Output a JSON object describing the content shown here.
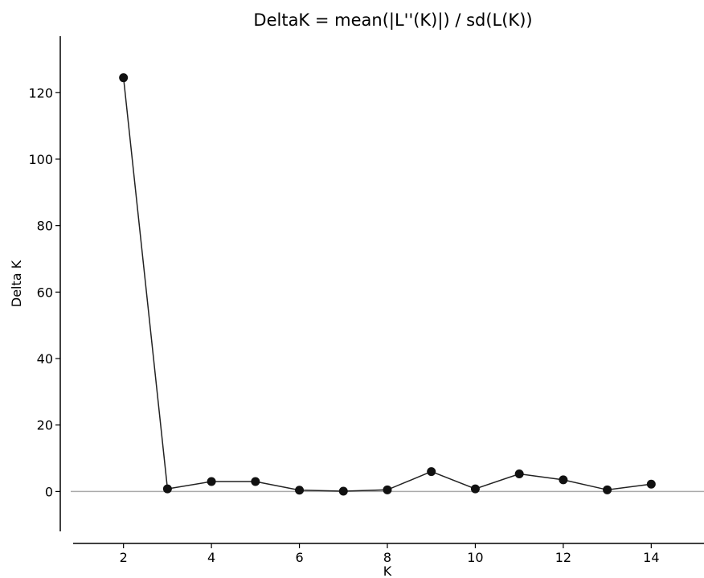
{
  "chart_data": {
    "type": "line",
    "title": "DeltaK = mean(|L''(K)|) / sd(L(K))",
    "xlabel": "K",
    "ylabel": "Delta K",
    "xlim": [
      0.8,
      15.2
    ],
    "ylim": [
      -12,
      137
    ],
    "xticks": [
      2,
      4,
      6,
      8,
      10,
      12,
      14
    ],
    "yticks": [
      0,
      20,
      40,
      60,
      80,
      100,
      120
    ],
    "grid": false,
    "reference_line_y": 0,
    "series": [
      {
        "x": [
          2,
          3,
          4,
          5,
          6,
          7,
          8,
          9,
          10,
          11,
          12,
          13,
          14
        ],
        "values": [
          124.5,
          0.8,
          3.0,
          3.0,
          0.4,
          0.1,
          0.5,
          6.0,
          0.8,
          5.3,
          3.5,
          0.5,
          2.2
        ]
      }
    ],
    "colors": {
      "line": "#222222",
      "marker": "#111111",
      "zero_line": "#aaaaaa",
      "axes": "#000000"
    }
  }
}
